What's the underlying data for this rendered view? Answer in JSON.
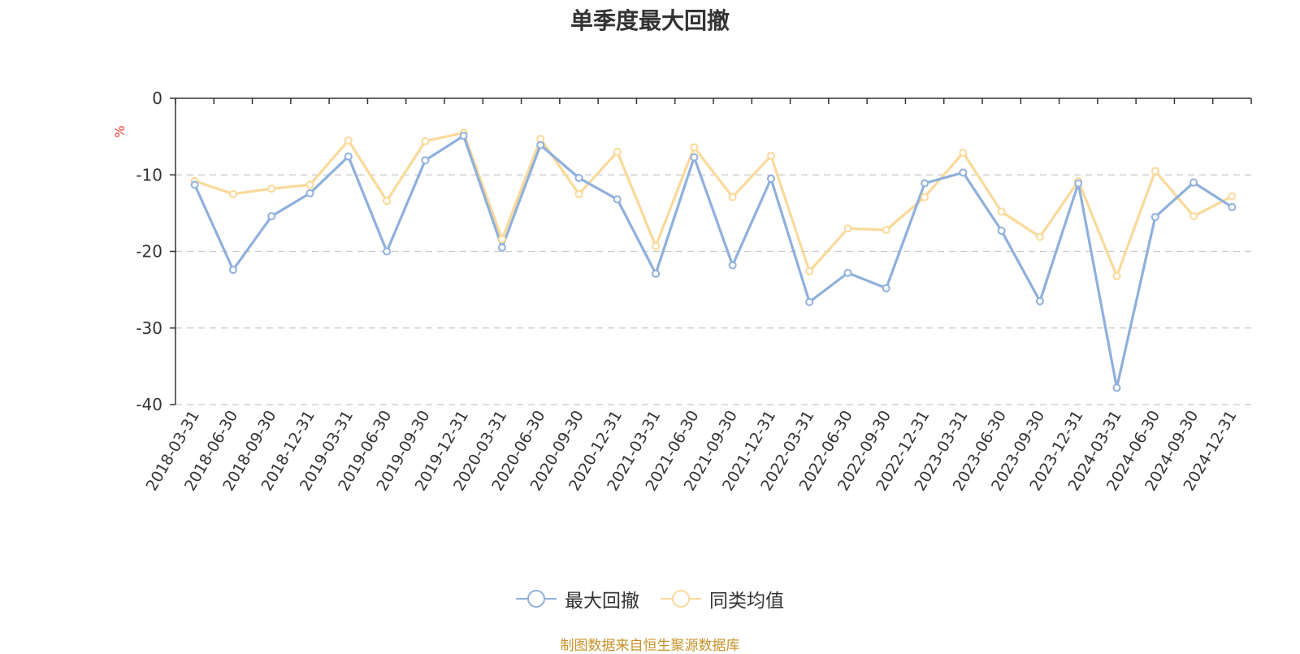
{
  "chart_data": {
    "type": "line",
    "title": "单季度最大回撤",
    "ylabel": "%",
    "xlabel": "",
    "ylim": [
      -40,
      0
    ],
    "yticks": [
      0,
      -10,
      -20,
      -30,
      -40
    ],
    "grid": true,
    "legend_position": "bottom",
    "categories": [
      "2018-03-31",
      "2018-06-30",
      "2018-09-30",
      "2018-12-31",
      "2019-03-31",
      "2019-06-30",
      "2019-09-30",
      "2019-12-31",
      "2020-03-31",
      "2020-06-30",
      "2020-09-30",
      "2020-12-31",
      "2021-03-31",
      "2021-06-30",
      "2021-09-30",
      "2021-12-31",
      "2022-03-31",
      "2022-06-30",
      "2022-09-30",
      "2022-12-31",
      "2023-03-31",
      "2023-06-30",
      "2023-09-30",
      "2023-12-31",
      "2024-03-31",
      "2024-06-30",
      "2024-09-30",
      "2024-12-31"
    ],
    "series": [
      {
        "name": "最大回撤",
        "color": "#8fb0dc",
        "values": [
          -11.3,
          -22.4,
          -15.4,
          -12.4,
          -7.6,
          -20.0,
          -8.1,
          -4.9,
          -19.5,
          -6.1,
          -10.4,
          -13.2,
          -22.9,
          -7.7,
          -21.8,
          -10.5,
          -26.6,
          -22.8,
          -24.8,
          -11.1,
          -9.7,
          -17.3,
          -26.5,
          -11.1,
          -37.8,
          -15.5,
          -11.0,
          -14.2
        ]
      },
      {
        "name": "同类均值",
        "color": "#fad99a",
        "values": [
          -10.8,
          -12.5,
          -11.8,
          -11.3,
          -5.5,
          -13.4,
          -5.6,
          -4.5,
          -18.4,
          -5.3,
          -12.5,
          -7.0,
          -19.3,
          -6.4,
          -12.9,
          -7.5,
          -22.6,
          -17.0,
          -17.2,
          -12.9,
          -7.1,
          -14.8,
          -18.1,
          -10.8,
          -23.2,
          -9.5,
          -15.4,
          -12.8
        ]
      }
    ]
  },
  "source_note": "制图数据来自恒生聚源数据库"
}
